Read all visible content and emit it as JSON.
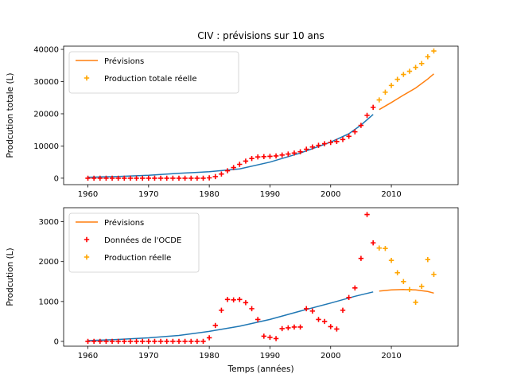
{
  "chart_data": [
    {
      "type": "line",
      "title": "CIV : prévisions sur 10 ans",
      "xlabel": "",
      "ylabel": "Prodcution totale (L)",
      "xlim": [
        1956,
        2021
      ],
      "ylim": [
        -2000,
        41000
      ],
      "xticks": [
        1960,
        1970,
        1980,
        1990,
        2000,
        2010
      ],
      "yticks": [
        0,
        10000,
        20000,
        30000,
        40000
      ],
      "legend": [
        {
          "label": "Prévisions",
          "marker": "line",
          "color": "#ff7f0e"
        },
        {
          "label": "Production totale réelle",
          "marker": "plus",
          "color": "#ffa500"
        }
      ],
      "legend_position": "top-left",
      "series": [
        {
          "style": "line",
          "color": "#1f77b4",
          "x": [
            1960,
            1965,
            1970,
            1975,
            1980,
            1985,
            1990,
            1995,
            2000,
            2003,
            2005,
            2007
          ],
          "y": [
            300,
            550,
            900,
            1500,
            2000,
            2900,
            5000,
            7800,
            11200,
            13800,
            16500,
            19800
          ]
        },
        {
          "style": "plus",
          "color": "#ff0000",
          "x": [
            1960,
            1961,
            1962,
            1963,
            1964,
            1965,
            1966,
            1967,
            1968,
            1969,
            1970,
            1971,
            1972,
            1973,
            1974,
            1975,
            1976,
            1977,
            1978,
            1979,
            1980,
            1981,
            1982,
            1983,
            1984,
            1985,
            1986,
            1987,
            1988,
            1989,
            1990,
            1991,
            1992,
            1993,
            1994,
            1995,
            1996,
            1997,
            1998,
            1999,
            2000,
            2001,
            2002,
            2003,
            2004,
            2005,
            2006,
            2007
          ],
          "y": [
            0,
            0,
            0,
            0,
            0,
            0,
            0,
            0,
            0,
            0,
            0,
            0,
            0,
            0,
            0,
            0,
            0,
            0,
            0,
            0,
            100,
            500,
            1300,
            2300,
            3300,
            4300,
            5300,
            6100,
            6600,
            6700,
            6800,
            6900,
            7200,
            7500,
            7800,
            8200,
            9000,
            9700,
            10200,
            10700,
            11100,
            11400,
            12000,
            13000,
            14400,
            16400,
            19500,
            22000
          ]
        },
        {
          "style": "line",
          "color": "#ff7f0e",
          "x": [
            2008,
            2010,
            2012,
            2014,
            2016,
            2017
          ],
          "y": [
            21300,
            23500,
            25800,
            28000,
            30800,
            32400
          ]
        },
        {
          "style": "plus",
          "color": "#ffa500",
          "x": [
            2008,
            2009,
            2010,
            2011,
            2012,
            2013,
            2014,
            2015,
            2016,
            2017
          ],
          "y": [
            24300,
            26700,
            28800,
            30700,
            32200,
            33200,
            34400,
            35600,
            37700,
            39500
          ]
        }
      ]
    },
    {
      "type": "line",
      "title": "",
      "xlabel": "Temps (années)",
      "ylabel": "Prodcution (L)",
      "xlim": [
        1956,
        2021
      ],
      "ylim": [
        -120,
        3350
      ],
      "xticks": [
        1960,
        1970,
        1980,
        1990,
        2000,
        2010
      ],
      "yticks": [
        0,
        1000,
        2000,
        3000
      ],
      "legend": [
        {
          "label": "Prévisions",
          "marker": "line",
          "color": "#ff7f0e"
        },
        {
          "label": "Données de l'OCDE",
          "marker": "plus",
          "color": "#ff0000"
        },
        {
          "label": "Production réelle",
          "marker": "plus",
          "color": "#ffa500"
        }
      ],
      "legend_position": "top-left",
      "series": [
        {
          "style": "line",
          "color": "#1f77b4",
          "x": [
            1960,
            1965,
            1970,
            1975,
            1980,
            1985,
            1990,
            1995,
            2000,
            2004,
            2007
          ],
          "y": [
            20,
            50,
            90,
            150,
            250,
            380,
            550,
            760,
            960,
            1130,
            1240
          ]
        },
        {
          "style": "plus",
          "color": "#ff0000",
          "x": [
            1960,
            1961,
            1962,
            1963,
            1964,
            1965,
            1966,
            1967,
            1968,
            1969,
            1970,
            1971,
            1972,
            1973,
            1974,
            1975,
            1976,
            1977,
            1978,
            1979,
            1980,
            1981,
            1982,
            1983,
            1984,
            1985,
            1986,
            1987,
            1988,
            1989,
            1990,
            1991,
            1992,
            1993,
            1994,
            1995,
            1996,
            1997,
            1998,
            1999,
            2000,
            2001,
            2002,
            2003,
            2004,
            2005,
            2006,
            2007
          ],
          "y": [
            0,
            0,
            0,
            0,
            0,
            0,
            0,
            0,
            0,
            0,
            0,
            0,
            0,
            0,
            0,
            0,
            0,
            0,
            0,
            0,
            90,
            400,
            780,
            1050,
            1040,
            1050,
            970,
            820,
            550,
            130,
            100,
            70,
            320,
            340,
            360,
            360,
            820,
            760,
            550,
            500,
            370,
            310,
            780,
            1100,
            1340,
            2080,
            3180,
            2470
          ]
        },
        {
          "style": "line",
          "color": "#ff7f0e",
          "x": [
            2008,
            2010,
            2012,
            2014,
            2016,
            2017
          ],
          "y": [
            1260,
            1290,
            1300,
            1290,
            1250,
            1210
          ]
        },
        {
          "style": "plus",
          "color": "#ffa500",
          "x": [
            2008,
            2009,
            2010,
            2011,
            2012,
            2013,
            2014,
            2015,
            2016,
            2017
          ],
          "y": [
            2340,
            2330,
            2030,
            1720,
            1500,
            1300,
            980,
            1380,
            2050,
            1680
          ]
        }
      ]
    }
  ]
}
